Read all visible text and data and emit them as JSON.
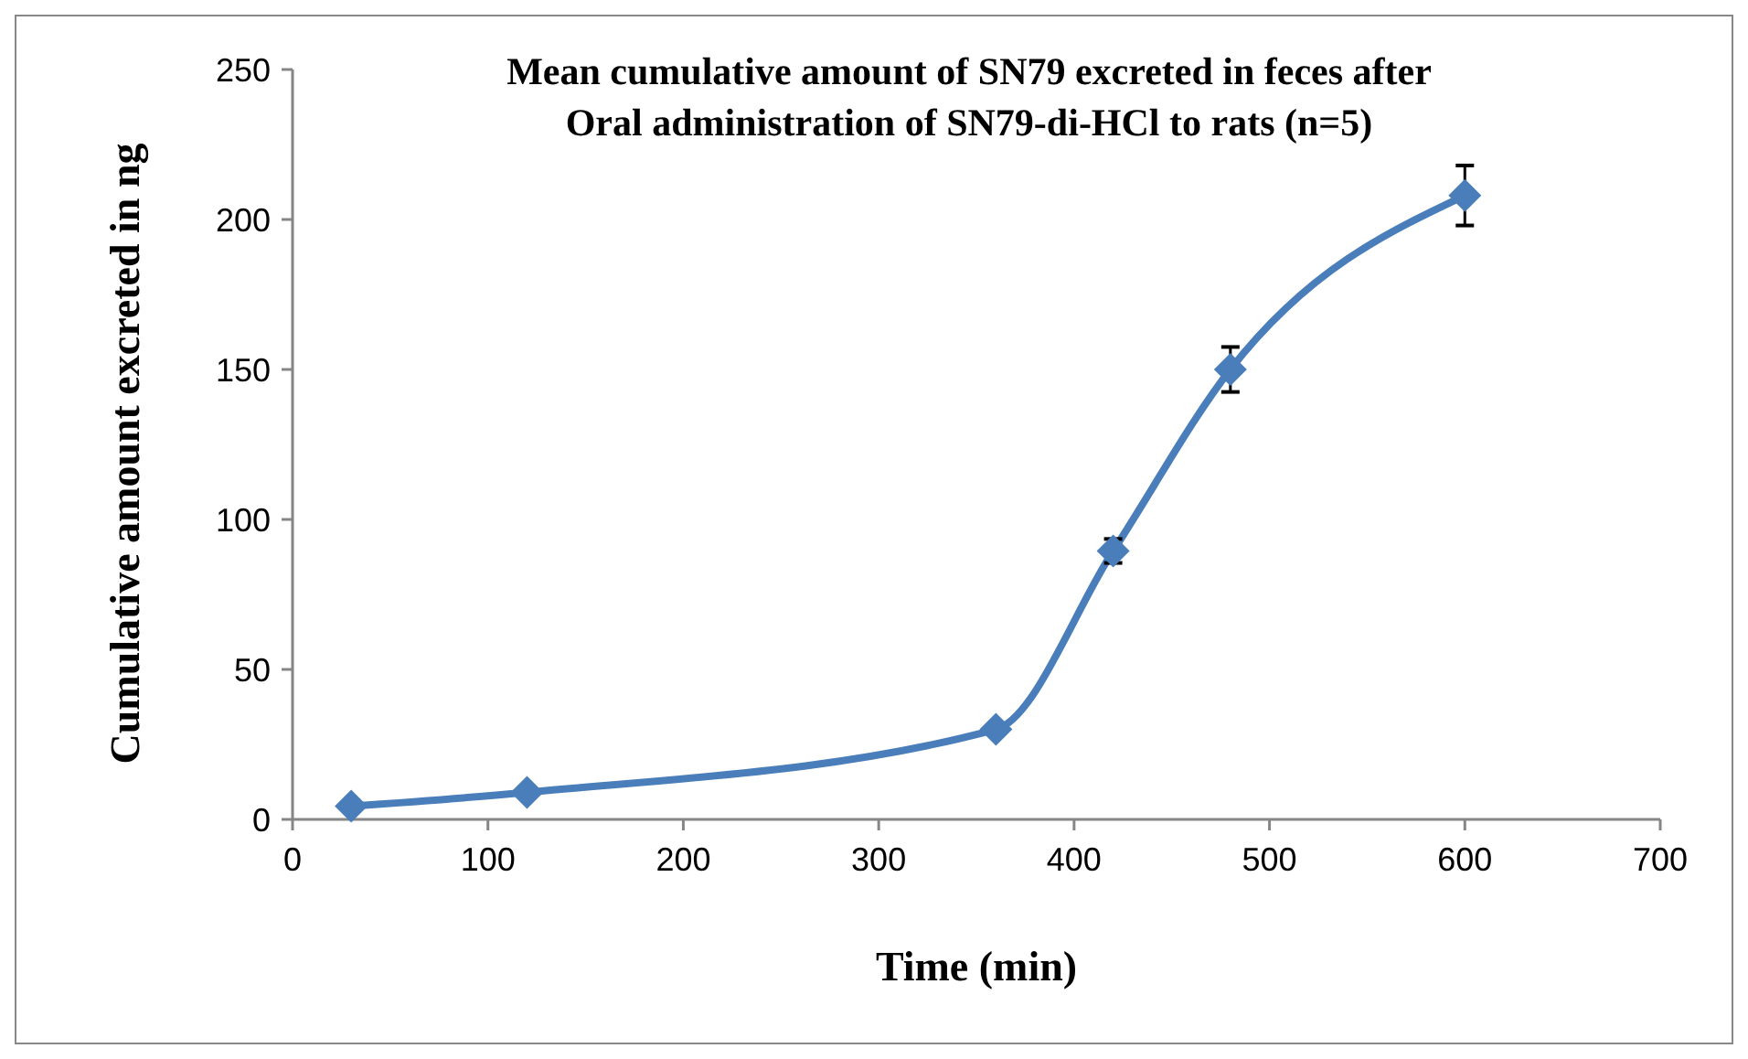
{
  "chart_data": {
    "type": "line",
    "title": "Mean cumulative amount of SN79 excreted in feces after Oral administration of SN79-di-HCl to rats (n=5)",
    "xlabel": "Time (min)",
    "ylabel": "Cumulative amount excreted in ng",
    "x": [
      30,
      120,
      360,
      420,
      480,
      600
    ],
    "series": [
      {
        "color": "#4a7ebb",
        "values": [
          4.4,
          9,
          30,
          89.5,
          150,
          208
        ],
        "errors": [
          null,
          null,
          null,
          4,
          7.5,
          10
        ]
      }
    ],
    "xlim": [
      0,
      700
    ],
    "xticks": [
      0,
      100,
      200,
      300,
      400,
      500,
      600,
      700
    ],
    "ylim": [
      0,
      250
    ],
    "yticks": [
      0,
      50,
      100,
      150,
      200,
      250
    ],
    "grid": false,
    "marker": "diamond",
    "line_style": "solid"
  }
}
